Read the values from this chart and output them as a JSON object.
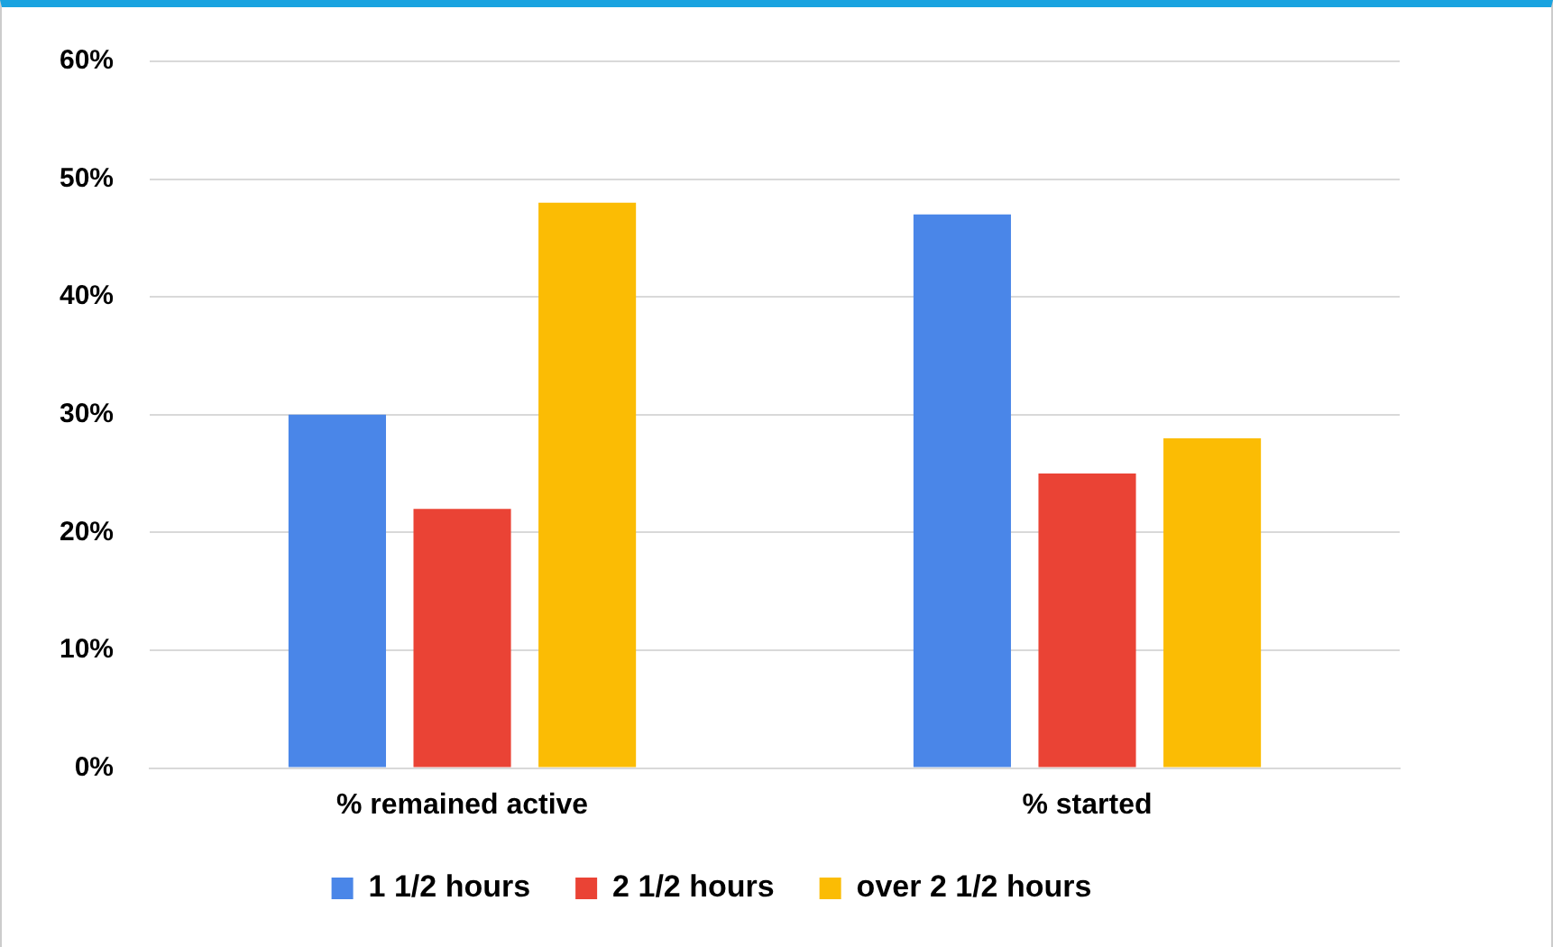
{
  "chart_data": {
    "type": "bar",
    "categories": [
      "% remained active",
      "% started"
    ],
    "series": [
      {
        "name": "1 1/2 hours",
        "color": "#4a86e8",
        "values": [
          30,
          47
        ]
      },
      {
        "name": "2 1/2 hours",
        "color": "#ea4335",
        "values": [
          22,
          25
        ]
      },
      {
        "name": "over 2 1/2 hours",
        "color": "#fbbc04",
        "values": [
          48,
          28
        ]
      }
    ],
    "ylim": [
      0,
      60
    ],
    "yticks": [
      {
        "value": 0,
        "label": "0%"
      },
      {
        "value": 10,
        "label": "10%"
      },
      {
        "value": 20,
        "label": "20%"
      },
      {
        "value": 30,
        "label": "30%"
      },
      {
        "value": 40,
        "label": "40%"
      },
      {
        "value": 50,
        "label": "50%"
      },
      {
        "value": 60,
        "label": "60%"
      }
    ],
    "grid": "y",
    "legend": "bottom"
  }
}
